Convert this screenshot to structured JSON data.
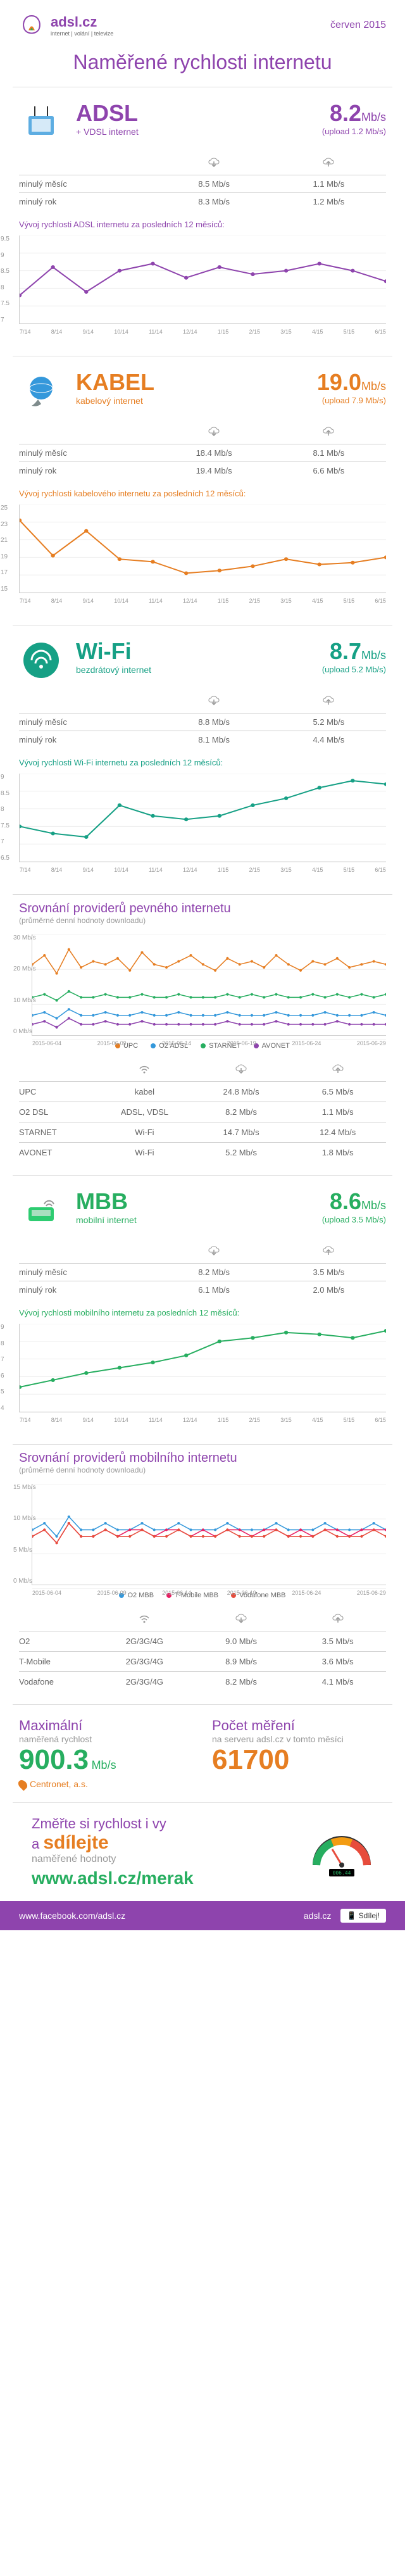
{
  "header": {
    "logo_main": "adsl.cz",
    "logo_sub": "internet | volání | televize",
    "date": "červen 2015"
  },
  "title": "Naměřené rychlosti internetu",
  "sections": [
    {
      "key": "adsl",
      "name": "ADSL",
      "sub": "+ VDSL internet",
      "speed": "8.2",
      "unit": "Mb/s",
      "upload": "(upload 1.2 Mb/s)",
      "color": "#8e44ad",
      "rows": [
        {
          "label": "minulý měsíc",
          "down": "8.5 Mb/s",
          "up": "1.1 Mb/s"
        },
        {
          "label": "minulý rok",
          "down": "8.3 Mb/s",
          "up": "1.2 Mb/s"
        }
      ],
      "chart_title": "Vývoj rychlosti ADSL internetu za posledních 12 měsíců:",
      "chart": {
        "ylabels": [
          "9.5",
          "9",
          "8.5",
          "8",
          "7.5",
          "7"
        ],
        "xlabels": [
          "7/14",
          "8/14",
          "9/14",
          "10/14",
          "11/14",
          "12/14",
          "1/15",
          "2/15",
          "3/15",
          "4/15",
          "5/15",
          "6/15"
        ],
        "values": [
          7.8,
          8.6,
          7.9,
          8.5,
          8.7,
          8.3,
          8.6,
          8.4,
          8.5,
          8.7,
          8.5,
          8.2
        ],
        "ymin": 7,
        "ymax": 9.5,
        "line_color": "#8e44ad"
      }
    },
    {
      "key": "kabel",
      "name": "KABEL",
      "sub": "kabelový internet",
      "speed": "19.0",
      "unit": "Mb/s",
      "upload": "(upload 7.9 Mb/s)",
      "color": "#e67e22",
      "rows": [
        {
          "label": "minulý měsíc",
          "down": "18.4 Mb/s",
          "up": "8.1 Mb/s"
        },
        {
          "label": "minulý rok",
          "down": "19.4 Mb/s",
          "up": "6.6 Mb/s"
        }
      ],
      "chart_title": "Vývoj rychlosti kabelového internetu za posledních 12 měsíců:",
      "chart": {
        "ylabels": [
          "25",
          "23",
          "21",
          "19",
          "17",
          "15"
        ],
        "xlabels": [
          "7/14",
          "8/14",
          "9/14",
          "10/14",
          "11/14",
          "12/14",
          "1/15",
          "2/15",
          "3/15",
          "4/15",
          "5/15",
          "6/15"
        ],
        "values": [
          23.2,
          19.2,
          22.0,
          18.8,
          18.5,
          17.2,
          17.5,
          18.0,
          18.8,
          18.2,
          18.4,
          19.0
        ],
        "ymin": 15,
        "ymax": 25,
        "line_color": "#e67e22"
      }
    },
    {
      "key": "wifi",
      "name": "Wi-Fi",
      "sub": "bezdrátový internet",
      "speed": "8.7",
      "unit": "Mb/s",
      "upload": "(upload 5.2 Mb/s)",
      "color": "#16a085",
      "rows": [
        {
          "label": "minulý měsíc",
          "down": "8.8 Mb/s",
          "up": "5.2 Mb/s"
        },
        {
          "label": "minulý rok",
          "down": "8.1 Mb/s",
          "up": "4.4 Mb/s"
        }
      ],
      "chart_title": "Vývoj rychlosti Wi-Fi internetu za posledních 12 měsíců:",
      "chart": {
        "ylabels": [
          "9",
          "8.5",
          "8",
          "7.5",
          "7",
          "6.5"
        ],
        "xlabels": [
          "7/14",
          "8/14",
          "9/14",
          "10/14",
          "11/14",
          "12/14",
          "1/15",
          "2/15",
          "3/15",
          "4/15",
          "5/15",
          "6/15"
        ],
        "values": [
          7.5,
          7.3,
          7.2,
          8.1,
          7.8,
          7.7,
          7.8,
          8.1,
          8.3,
          8.6,
          8.8,
          8.7
        ],
        "ymin": 6.5,
        "ymax": 9,
        "line_color": "#16a085"
      }
    }
  ],
  "provider_compare": {
    "title": "Srovnání providerů pevného internetu",
    "sub": "(průměrné denní hodnoty downloadu)",
    "chart": {
      "ylabels": [
        "30 Mb/s",
        "20 Mb/s",
        "10 Mb/s",
        "0 Mb/s"
      ],
      "xlabels": [
        "2015-06-04",
        "2015-06-09",
        "2015-06-14",
        "2015-06-19",
        "2015-06-24",
        "2015-06-29"
      ],
      "ymin": 0,
      "ymax": 35,
      "series": [
        {
          "name": "UPC",
          "color": "#e67e22",
          "values": [
            25,
            28,
            22,
            30,
            24,
            26,
            25,
            27,
            23,
            29,
            25,
            24,
            26,
            28,
            25,
            23,
            27,
            25,
            26,
            24,
            28,
            25,
            23,
            26,
            25,
            27,
            24,
            25,
            26,
            25
          ]
        },
        {
          "name": "O2 ADSL",
          "color": "#3498db",
          "values": [
            8,
            9,
            7,
            10,
            8,
            8,
            9,
            8,
            8,
            9,
            8,
            8,
            9,
            8,
            8,
            8,
            9,
            8,
            8,
            8,
            9,
            8,
            8,
            8,
            9,
            8,
            8,
            8,
            9,
            8
          ]
        },
        {
          "name": "STARNET",
          "color": "#27ae60",
          "values": [
            14,
            15,
            13,
            16,
            14,
            14,
            15,
            14,
            14,
            15,
            14,
            14,
            15,
            14,
            14,
            14,
            15,
            14,
            15,
            14,
            15,
            14,
            14,
            15,
            14,
            15,
            14,
            15,
            14,
            15
          ]
        },
        {
          "name": "AVONET",
          "color": "#8e44ad",
          "values": [
            5,
            6,
            4,
            7,
            5,
            5,
            6,
            5,
            5,
            6,
            5,
            5,
            5,
            5,
            5,
            5,
            6,
            5,
            5,
            5,
            6,
            5,
            5,
            5,
            5,
            6,
            5,
            5,
            5,
            5
          ]
        }
      ]
    },
    "legend": [
      {
        "name": "UPC",
        "color": "#e67e22"
      },
      {
        "name": "O2 ADSL",
        "color": "#3498db"
      },
      {
        "name": "STARNET",
        "color": "#27ae60"
      },
      {
        "name": "AVONET",
        "color": "#8e44ad"
      }
    ],
    "table": {
      "rows": [
        {
          "name": "UPC",
          "type": "kabel",
          "down": "24.8 Mb/s",
          "up": "6.5 Mb/s"
        },
        {
          "name": "O2 DSL",
          "type": "ADSL, VDSL",
          "down": "8.2 Mb/s",
          "up": "1.1 Mb/s"
        },
        {
          "name": "STARNET",
          "type": "Wi-Fi",
          "down": "14.7 Mb/s",
          "up": "12.4 Mb/s"
        },
        {
          "name": "AVONET",
          "type": "Wi-Fi",
          "down": "5.2 Mb/s",
          "up": "1.8 Mb/s"
        }
      ]
    }
  },
  "mbb": {
    "key": "mbb",
    "name": "MBB",
    "sub": "mobilní internet",
    "speed": "8.6",
    "unit": "Mb/s",
    "upload": "(upload 3.5 Mb/s)",
    "color": "#27ae60",
    "rows": [
      {
        "label": "minulý měsíc",
        "down": "8.2 Mb/s",
        "up": "3.5 Mb/s"
      },
      {
        "label": "minulý rok",
        "down": "6.1 Mb/s",
        "up": "2.0 Mb/s"
      }
    ],
    "chart_title": "Vývoj rychlosti mobilního internetu za posledních 12 měsíců:",
    "chart": {
      "ylabels": [
        "9",
        "8",
        "7",
        "6",
        "5",
        "4"
      ],
      "xlabels": [
        "7/14",
        "8/14",
        "9/14",
        "10/14",
        "11/14",
        "12/14",
        "1/15",
        "2/15",
        "3/15",
        "4/15",
        "5/15",
        "6/15"
      ],
      "values": [
        5.4,
        5.8,
        6.2,
        6.5,
        6.8,
        7.2,
        8.0,
        8.2,
        8.5,
        8.4,
        8.2,
        8.6
      ],
      "ymin": 4,
      "ymax": 9,
      "line_color": "#27ae60"
    }
  },
  "mobile_compare": {
    "title": "Srovnání providerů mobilního internetu",
    "sub": "(průměrné denní hodnoty downloadu)",
    "chart": {
      "ylabels": [
        "15 Mb/s",
        "10 Mb/s",
        "5 Mb/s",
        "0 Mb/s"
      ],
      "xlabels": [
        "2015-06-04",
        "2015-06-09",
        "2015-06-14",
        "2015-06-19",
        "2015-06-24",
        "2015-06-29"
      ],
      "ymin": 0,
      "ymax": 16,
      "series": [
        {
          "name": "O2 MBB",
          "color": "#3498db",
          "values": [
            9,
            10,
            8,
            11,
            9,
            9,
            10,
            9,
            9,
            10,
            9,
            9,
            10,
            9,
            9,
            9,
            10,
            9,
            9,
            9,
            10,
            9,
            9,
            9,
            10,
            9,
            9,
            9,
            10,
            9
          ]
        },
        {
          "name": "T-Mobile MBB",
          "color": "#e91e63",
          "values": [
            8,
            9,
            7,
            10,
            8,
            8,
            9,
            8,
            9,
            9,
            8,
            9,
            9,
            8,
            9,
            8,
            9,
            9,
            8,
            9,
            9,
            8,
            9,
            8,
            9,
            9,
            8,
            9,
            9,
            9
          ]
        },
        {
          "name": "Vodafone MBB",
          "color": "#e74c3c",
          "values": [
            8,
            9,
            7,
            10,
            8,
            8,
            9,
            8,
            8,
            9,
            8,
            8,
            9,
            8,
            8,
            8,
            9,
            8,
            8,
            8,
            9,
            8,
            8,
            8,
            9,
            8,
            8,
            8,
            9,
            8
          ]
        }
      ]
    },
    "legend": [
      {
        "name": "O2 MBB",
        "color": "#3498db"
      },
      {
        "name": "T-Mobile MBB",
        "color": "#e91e63"
      },
      {
        "name": "Vodafone MBB",
        "color": "#e74c3c"
      }
    ],
    "table": {
      "rows": [
        {
          "name": "O2",
          "type": "2G/3G/4G",
          "down": "9.0 Mb/s",
          "up": "3.5 Mb/s"
        },
        {
          "name": "T-Mobile",
          "type": "2G/3G/4G",
          "down": "8.9 Mb/s",
          "up": "3.6 Mb/s"
        },
        {
          "name": "Vodafone",
          "type": "2G/3G/4G",
          "down": "8.2 Mb/s",
          "up": "4.1 Mb/s"
        }
      ]
    }
  },
  "stats": {
    "max_label": "Maximální",
    "max_sublabel": "naměřená rychlost",
    "max_value": "900.3",
    "max_unit": "Mb/s",
    "max_provider": "Centronet, a.s.",
    "count_label": "Počet měření",
    "count_sublabel": "na serveru adsl.cz v tomto měsíci",
    "count_value": "61700"
  },
  "cta": {
    "line1a": "Změřte si rychlost i vy",
    "line1b": "a ",
    "highlight": "sdílejte",
    "line2": "naměřené hodnoty",
    "url": "www.adsl.cz/merak",
    "gauge_value": "006.44"
  },
  "footer": {
    "fb": "www.facebook.com/adsl.cz",
    "site": "adsl.cz",
    "share": "Sdílej!"
  },
  "icons": {
    "down": "⬇",
    "up": "⬆"
  }
}
